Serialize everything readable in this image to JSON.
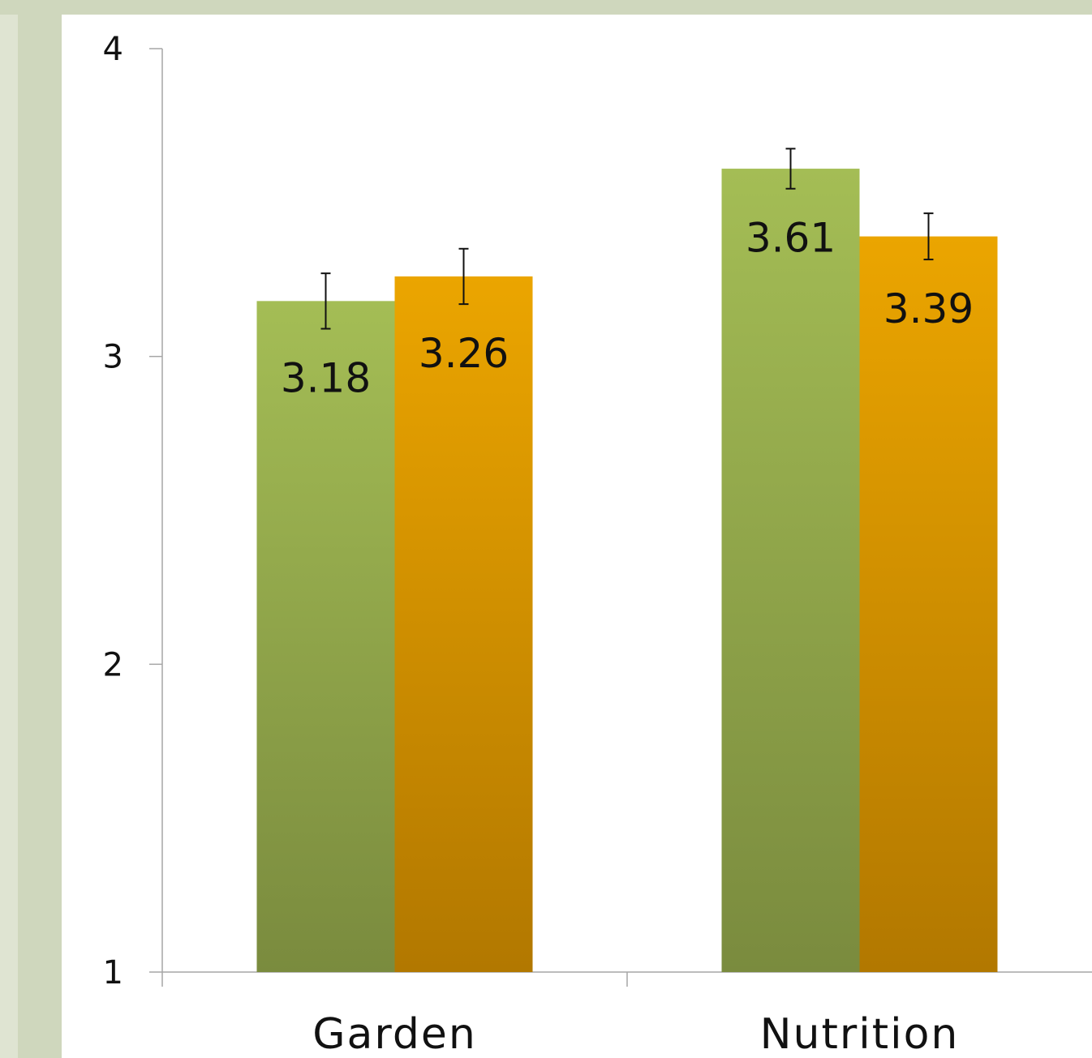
{
  "colors": {
    "frame": "#cfd7bd",
    "frame_inner": "#dfe4d2",
    "axis": "#a6a6a6",
    "series_1_top": "#a4bd55",
    "series_1_bottom": "#7a8b3e",
    "series_2_top": "#eba500",
    "series_2_bottom": "#b27800",
    "error_bar": "#111111"
  },
  "chart_data": {
    "type": "bar",
    "title": "",
    "xlabel": "",
    "ylabel": "",
    "ylim": [
      1,
      4
    ],
    "yticks": [
      "1",
      "2",
      "3",
      "4"
    ],
    "grid": false,
    "legend": "none",
    "categories": [
      "Garden",
      "Nutrition"
    ],
    "series": [
      {
        "values": [
          3.18,
          3.61
        ],
        "labels": [
          "3.18",
          "3.61"
        ],
        "errors": [
          0.09,
          0.065
        ]
      },
      {
        "values": [
          3.26,
          3.39
        ],
        "labels": [
          "3.26",
          "3.39"
        ],
        "errors": [
          0.09,
          0.075
        ]
      }
    ]
  }
}
